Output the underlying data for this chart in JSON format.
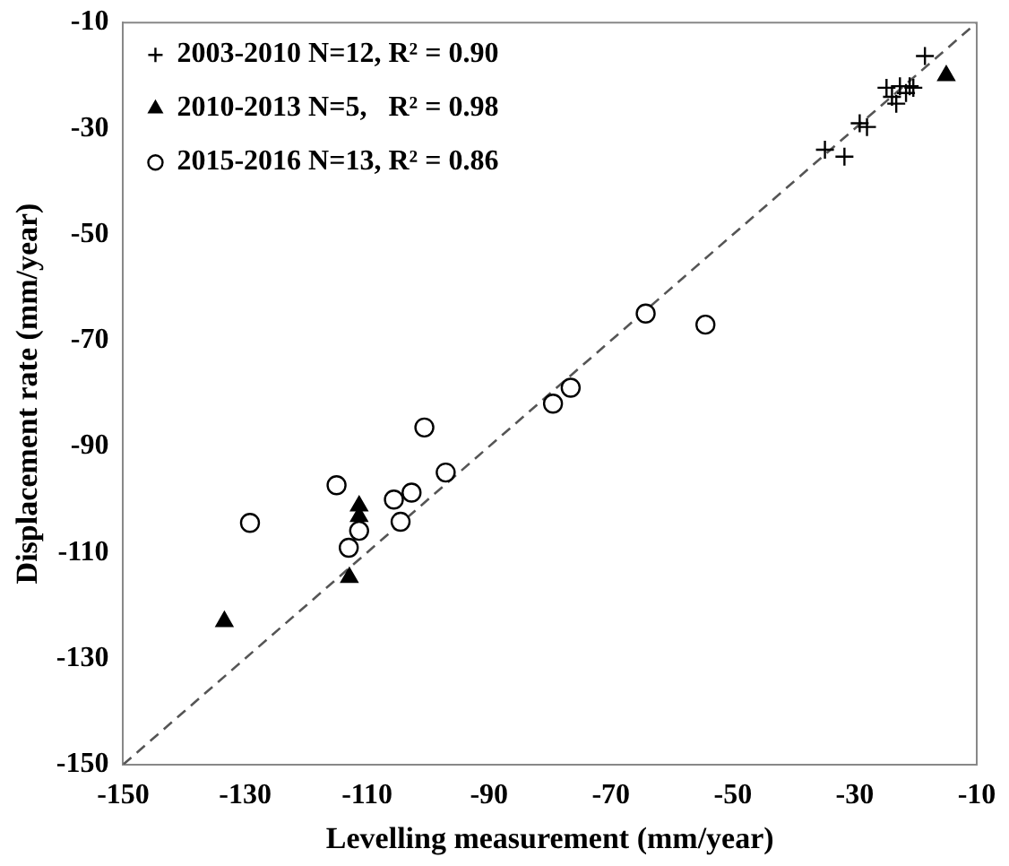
{
  "chart_data": {
    "type": "scatter",
    "xlabel": "Levelling measurement (mm/year)",
    "ylabel": "Displacement rate (mm/year)",
    "xlim": [
      -150,
      -10
    ],
    "ylim": [
      -150,
      -10
    ],
    "xticks": [
      -150,
      -130,
      -110,
      -90,
      -70,
      -50,
      -30,
      -10
    ],
    "yticks": [
      -150,
      -130,
      -110,
      -90,
      -70,
      -50,
      -30,
      -10
    ],
    "grid": false,
    "legend": "top left",
    "series": [
      {
        "name": "2003-2010 N=12, R² = 0.90",
        "color": "#000000",
        "marker": "cross",
        "x": [
          -18.5,
          -24.8,
          -21.0,
          -20.4,
          -23.9,
          -23.2,
          -21.6,
          -28,
          -29.2,
          -34.9,
          -31.7,
          -22.6
        ],
        "values": [
          -16.3,
          -22.3,
          -22,
          -22.3,
          -24,
          -25.3,
          -23.3,
          -29.7,
          -29,
          -34,
          -35.3,
          -22
        ]
      },
      {
        "name": "2010-2013 N=5,   R² = 0.98",
        "color": "#000000",
        "marker": "triangle",
        "x": [
          -133.4,
          -112.9,
          -111.3,
          -111.3,
          -15
        ],
        "values": [
          -123.0,
          -114.7,
          -101.2,
          -103.2,
          -20
        ]
      },
      {
        "name": "2015-2016 N=13, R² = 0.86",
        "color": "#000000",
        "marker": "circle",
        "x": [
          -64.3,
          -54.5,
          -76.6,
          -79.5,
          -100.6,
          -97.1,
          -115.0,
          -105.6,
          -102.7,
          -104.5,
          -111.3,
          -113.0,
          -129.2
        ],
        "values": [
          -64.9,
          -67,
          -78.9,
          -81.9,
          -86.4,
          -94.9,
          -97.3,
          -100.0,
          -98.7,
          -104.2,
          -105.9,
          -109.1,
          -104.4
        ]
      },
      {
        "type": "line",
        "color": "#555555",
        "line_style": "dashed",
        "marker": "none",
        "x": [
          -150,
          -10
        ],
        "values": [
          -150,
          -10
        ]
      }
    ]
  }
}
